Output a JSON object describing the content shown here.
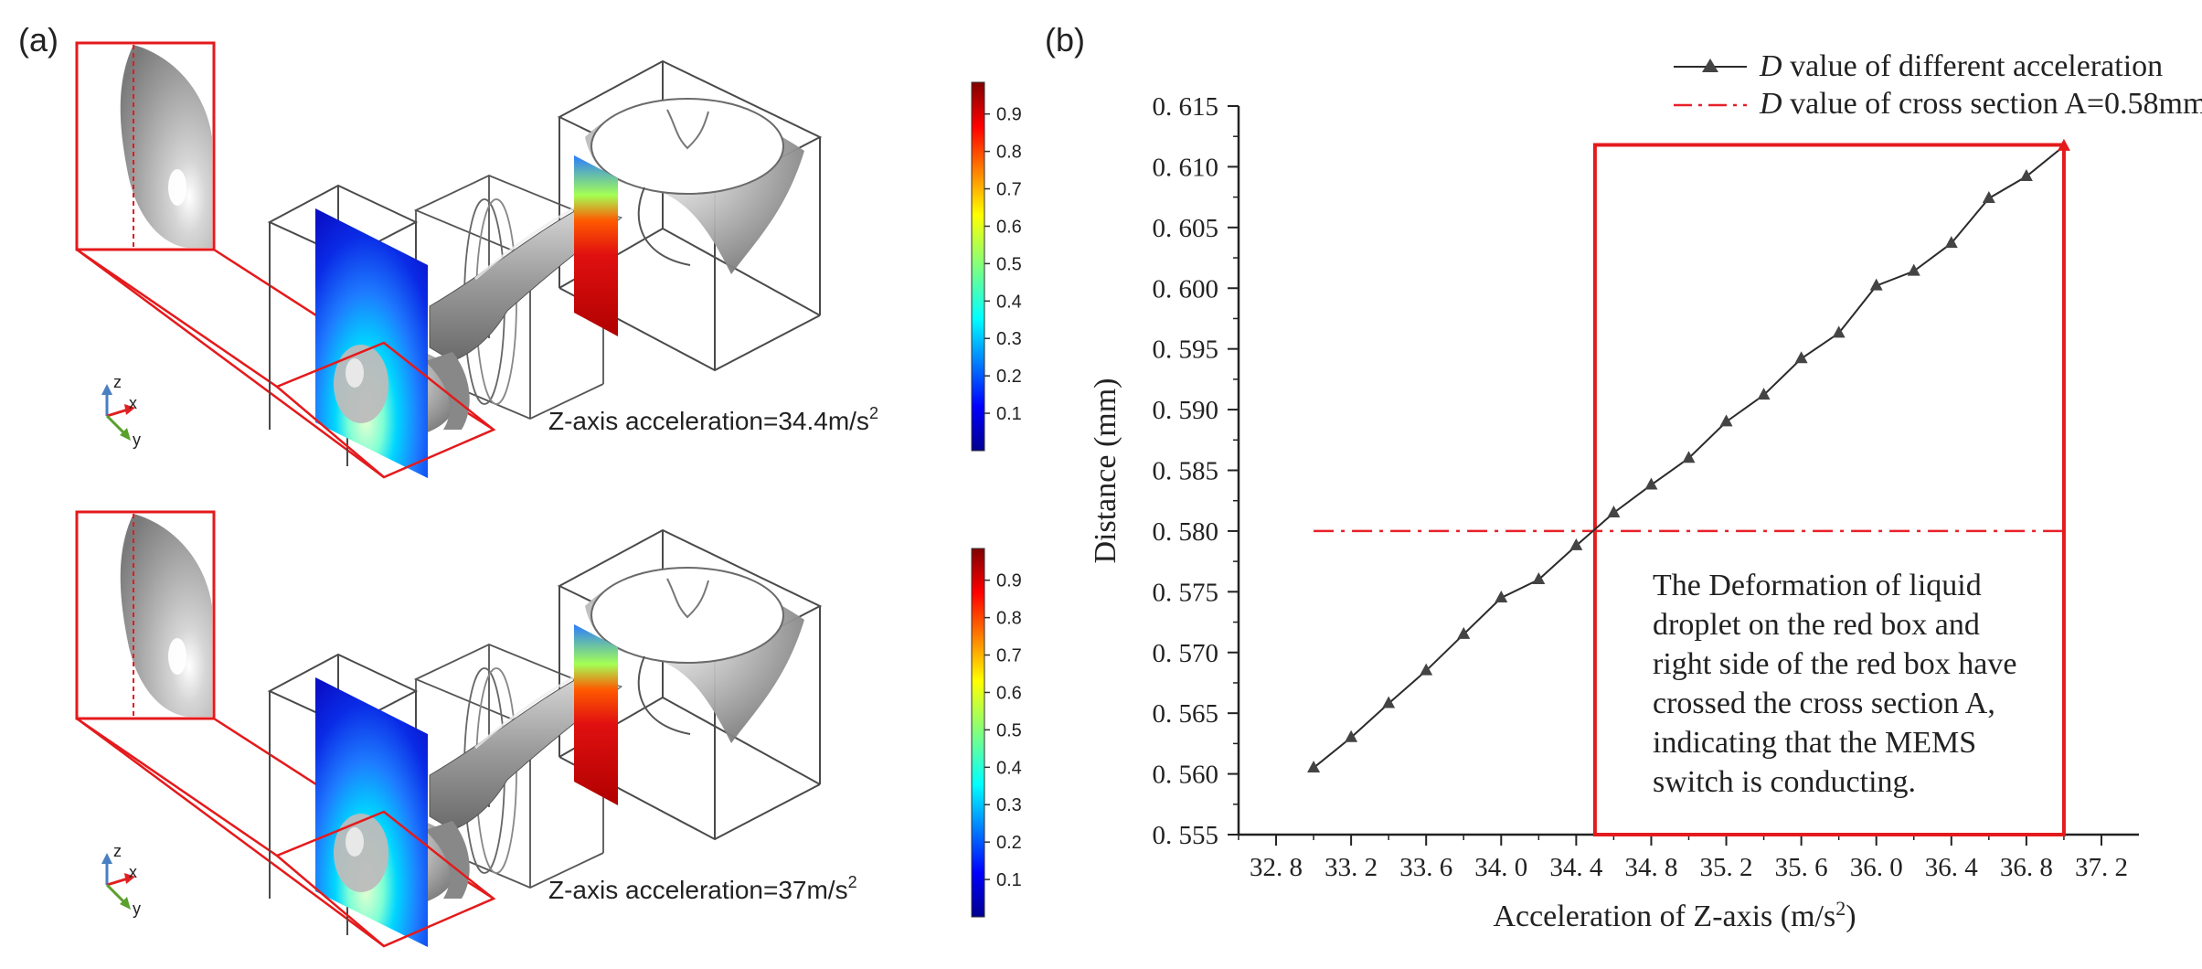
{
  "panel_a": {
    "label": "(a)",
    "top": {
      "annotation_prefix": "Z-axis acceleration=34.4m/s",
      "annotation_sup": "2"
    },
    "bottom": {
      "annotation_prefix": "Z-axis acceleration=37m/s",
      "annotation_sup": "2"
    },
    "axes": {
      "z": "z",
      "x": "x",
      "y": "y"
    },
    "colorbar_ticks": [
      "0.9",
      "0.8",
      "0.7",
      "0.6",
      "0.5",
      "0.4",
      "0.3",
      "0.2",
      "0.1"
    ]
  },
  "panel_b": {
    "label": "(b)",
    "text_box": [
      "The Deformation of liquid",
      "droplet on the red box and",
      "right side of the red box have",
      "crossed the cross section A,",
      "indicating that the MEMS",
      "switch is conducting."
    ]
  },
  "chart_data": {
    "type": "line",
    "title": "",
    "xlabel": "Acceleration of Z-axis (m/s",
    "xlabel_sup": "2",
    "xlabel_end": ")",
    "ylabel": "Distance (mm)",
    "xlim": [
      32.6,
      37.4
    ],
    "ylim": [
      0.555,
      0.615
    ],
    "xticks": [
      "32.8",
      "33.2",
      "33.6",
      "34.0",
      "34.4",
      "34.8",
      "35.2",
      "35.6",
      "36.0",
      "36.4",
      "36.8",
      "37.2"
    ],
    "yticks": [
      "0.555",
      "0.560",
      "0.565",
      "0.570",
      "0.575",
      "0.580",
      "0.585",
      "0.590",
      "0.595",
      "0.600",
      "0.605",
      "0.610",
      "0.615"
    ],
    "legend": [
      {
        "symbol": "D",
        "text": " value of different acceleration"
      },
      {
        "symbol": "D",
        "text": " value of cross section A=0.58mm"
      }
    ],
    "series": [
      {
        "name": "D value of different acceleration",
        "marker": "triangle",
        "x": [
          33.0,
          33.2,
          33.4,
          33.6,
          33.8,
          34.0,
          34.2,
          34.4,
          34.6,
          34.8,
          35.0,
          35.2,
          35.4,
          35.6,
          35.8,
          36.0,
          36.2,
          36.4,
          36.6,
          36.8,
          37.0
        ],
        "y": [
          0.5605,
          0.563,
          0.5658,
          0.5685,
          0.5715,
          0.5745,
          0.576,
          0.5788,
          0.5815,
          0.5838,
          0.586,
          0.589,
          0.5912,
          0.5942,
          0.5963,
          0.6002,
          0.6014,
          0.6037,
          0.6074,
          0.6092,
          0.6117
        ]
      }
    ],
    "reference_line": {
      "name": "D value of cross section A=0.58mm",
      "y": 0.58,
      "x_range": [
        33.0,
        37.0
      ],
      "style": "dash-dot"
    },
    "highlight_box": {
      "x_range": [
        34.5,
        37.0
      ],
      "y_range": [
        0.555,
        0.6118
      ]
    },
    "colors": {
      "series": "#2b2b2b",
      "reference": "#e8202a",
      "box": "#e41a1c"
    }
  }
}
